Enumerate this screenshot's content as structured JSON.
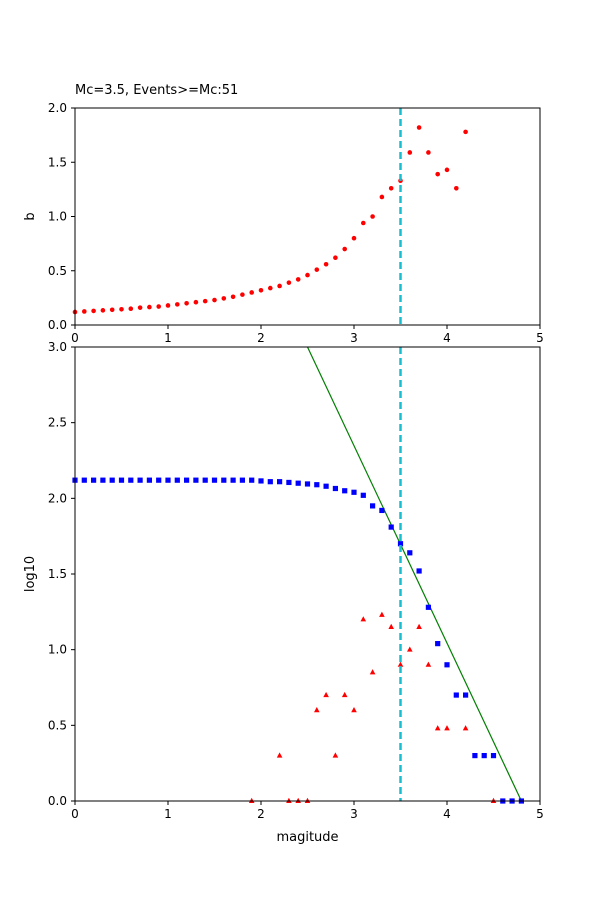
{
  "chart_data": [
    {
      "type": "scatter",
      "title": "Mc=3.5, Events>=Mc:51",
      "xlabel": "",
      "ylabel": "b",
      "xlim": [
        0,
        5
      ],
      "ylim": [
        0,
        2.0
      ],
      "xticks": [
        "0",
        "1",
        "2",
        "3",
        "4",
        "5"
      ],
      "yticks": [
        "0.0",
        "0.5",
        "1.0",
        "1.5",
        "2.0"
      ],
      "grid": false,
      "mc_line": {
        "x": 3.5,
        "color": "#17BECF",
        "style": "dashed"
      },
      "series": [
        {
          "marker": "circle",
          "color": "#FF0000",
          "x": [
            0.0,
            0.1,
            0.2,
            0.3,
            0.4,
            0.5,
            0.6,
            0.7,
            0.8,
            0.9,
            1.0,
            1.1,
            1.2,
            1.3,
            1.4,
            1.5,
            1.6,
            1.7,
            1.8,
            1.9,
            2.0,
            2.1,
            2.2,
            2.3,
            2.4,
            2.5,
            2.6,
            2.7,
            2.8,
            2.9,
            3.0,
            3.1,
            3.2,
            3.3,
            3.4,
            3.5,
            3.6,
            3.7,
            3.8,
            3.9,
            4.0,
            4.1,
            4.2
          ],
          "y": [
            0.12,
            0.125,
            0.13,
            0.135,
            0.14,
            0.145,
            0.15,
            0.16,
            0.165,
            0.17,
            0.18,
            0.19,
            0.2,
            0.21,
            0.22,
            0.23,
            0.245,
            0.26,
            0.28,
            0.3,
            0.32,
            0.34,
            0.36,
            0.39,
            0.42,
            0.46,
            0.51,
            0.56,
            0.62,
            0.7,
            0.8,
            0.94,
            1.0,
            1.18,
            1.26,
            1.33,
            1.59,
            1.82,
            1.59,
            1.39,
            1.43,
            1.26,
            1.78
          ]
        }
      ]
    },
    {
      "type": "scatter",
      "title": "",
      "xlabel": "magitude",
      "ylabel": "log10",
      "xlim": [
        0,
        5
      ],
      "ylim": [
        0,
        3.0
      ],
      "xticks": [
        "0",
        "1",
        "2",
        "3",
        "4",
        "5"
      ],
      "yticks": [
        "0.0",
        "0.5",
        "1.0",
        "1.5",
        "2.0",
        "2.5",
        "3.0"
      ],
      "grid": false,
      "mc_line": {
        "x": 3.5,
        "color": "#17BECF",
        "style": "dashed"
      },
      "fit_line": {
        "color": "#008000",
        "points": [
          [
            2.5,
            3.0
          ],
          [
            4.8,
            0.0
          ]
        ]
      },
      "series": [
        {
          "marker": "square",
          "color": "#0000FF",
          "x": [
            0.0,
            0.1,
            0.2,
            0.3,
            0.4,
            0.5,
            0.6,
            0.7,
            0.8,
            0.9,
            1.0,
            1.1,
            1.2,
            1.3,
            1.4,
            1.5,
            1.6,
            1.7,
            1.8,
            1.9,
            2.0,
            2.1,
            2.2,
            2.3,
            2.4,
            2.5,
            2.6,
            2.7,
            2.8,
            2.9,
            3.0,
            3.1,
            3.2,
            3.3,
            3.4,
            3.5,
            3.6,
            3.7,
            3.8,
            3.9,
            4.0,
            4.1,
            4.2,
            4.3,
            4.4,
            4.5,
            4.6,
            4.7,
            4.8
          ],
          "y": [
            2.12,
            2.12,
            2.12,
            2.12,
            2.12,
            2.12,
            2.12,
            2.12,
            2.12,
            2.12,
            2.12,
            2.12,
            2.12,
            2.12,
            2.12,
            2.12,
            2.12,
            2.12,
            2.12,
            2.12,
            2.115,
            2.11,
            2.11,
            2.105,
            2.1,
            2.095,
            2.09,
            2.08,
            2.065,
            2.05,
            2.04,
            2.02,
            1.95,
            1.92,
            1.81,
            1.7,
            1.64,
            1.52,
            1.28,
            1.04,
            0.9,
            0.7,
            0.7,
            0.3,
            0.3,
            0.3,
            0.0,
            0.0,
            0.0
          ]
        },
        {
          "marker": "triangle",
          "color": "#FF0000",
          "x": [
            1.9,
            2.2,
            2.3,
            2.4,
            2.5,
            2.6,
            2.7,
            2.8,
            2.9,
            3.0,
            3.1,
            3.2,
            3.3,
            3.4,
            3.5,
            3.6,
            3.7,
            3.8,
            3.9,
            4.0,
            4.2,
            4.5
          ],
          "y": [
            0.0,
            0.3,
            0.0,
            0.0,
            0.0,
            0.6,
            0.7,
            0.3,
            0.7,
            0.6,
            1.2,
            0.85,
            1.23,
            1.15,
            0.9,
            1.0,
            1.15,
            0.9,
            0.48,
            0.48,
            0.48,
            0.0
          ]
        }
      ]
    }
  ]
}
